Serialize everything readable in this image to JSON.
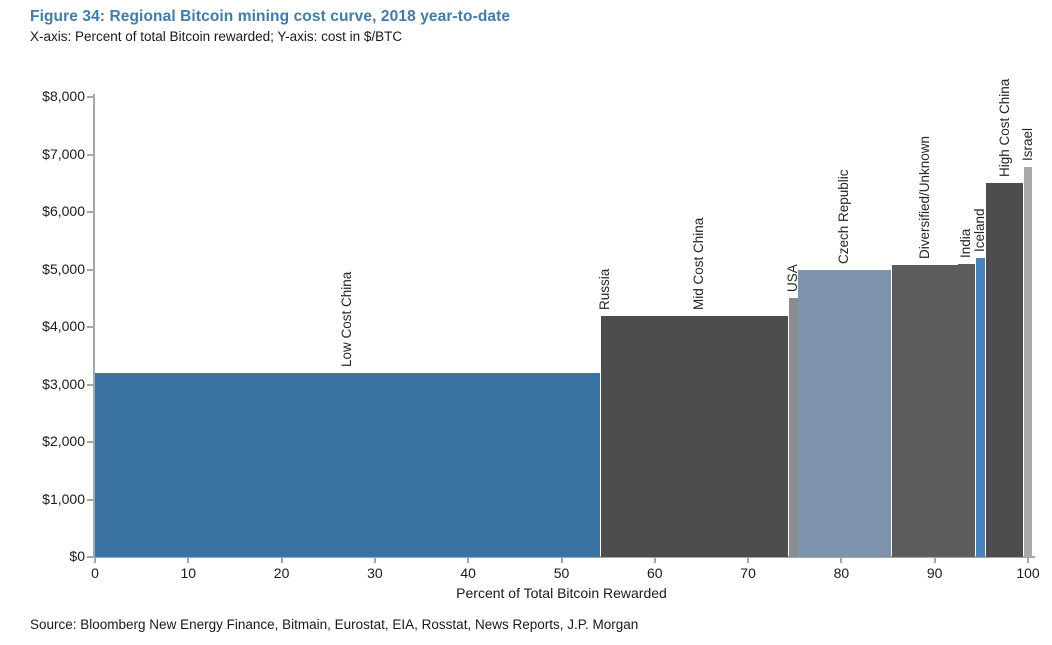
{
  "figure": {
    "title": "Figure 34: Regional Bitcoin mining cost curve, 2018 year-to-date",
    "subtitle": "X-axis: Percent of total Bitcoin rewarded; Y-axis: cost in $/BTC",
    "source": "Source: Bloomberg New Energy Finance, Bitmain, Eurostat, EIA, Rosstat, News Reports, J.P. Morgan"
  },
  "colors": {
    "title_accent": "#3f7cae",
    "axis": "#a6a6a6",
    "text": "#1a1a1a"
  },
  "chart_data": {
    "type": "bar",
    "variant": "variable-width-cost-curve",
    "title": "Figure 34: Regional Bitcoin mining cost curve, 2018 year-to-date",
    "subtitle": "X-axis: Percent of total Bitcoin rewarded; Y-axis: cost in $/BTC",
    "xlabel": "Percent of Total Bitcoin Rewarded",
    "ylabel": "cost in $/BTC",
    "xlim": [
      0,
      100
    ],
    "ylim": [
      0,
      8000
    ],
    "grid": false,
    "legend": false,
    "x_ticks": [
      0,
      10,
      20,
      30,
      40,
      50,
      60,
      70,
      80,
      90,
      100
    ],
    "y_ticks": [
      {
        "value": 0,
        "label": "$0"
      },
      {
        "value": 1000,
        "label": "$1,000"
      },
      {
        "value": 2000,
        "label": "$2,000"
      },
      {
        "value": 3000,
        "label": "$3,000"
      },
      {
        "value": 4000,
        "label": "$4,000"
      },
      {
        "value": 5000,
        "label": "$5,000"
      },
      {
        "value": 6000,
        "label": "$6,000"
      },
      {
        "value": 7000,
        "label": "$7,000"
      },
      {
        "value": 8000,
        "label": "$8,000"
      }
    ],
    "segments": [
      {
        "label": "Low Cost China",
        "x_start": 0,
        "x_end": 54.1,
        "value": 3200,
        "color": "#3a72a3"
      },
      {
        "label": "Russia",
        "x_start": 54.2,
        "x_end": 55.2,
        "value": 4200,
        "color": "#4d4d4f"
      },
      {
        "label": "Mid Cost China",
        "x_start": 55.2,
        "x_end": 74.3,
        "value": 4200,
        "color": "#4d4d4f"
      },
      {
        "label": "USA",
        "x_start": 74.4,
        "x_end": 75.3,
        "value": 4500,
        "color": "#8a8c8f"
      },
      {
        "label": "Czech Republic",
        "x_start": 75.3,
        "x_end": 85.3,
        "value": 5000,
        "color": "#7e93ae"
      },
      {
        "label": "Diversified/Unknown",
        "x_start": 85.4,
        "x_end": 92.5,
        "value": 5080,
        "color": "#5a5c5e"
      },
      {
        "label": "India",
        "x_start": 92.5,
        "x_end": 94.3,
        "value": 5100,
        "color": "#5a5c5e"
      },
      {
        "label": "Iceland",
        "x_start": 94.4,
        "x_end": 95.4,
        "value": 5200,
        "color": "#4583c1"
      },
      {
        "label": "High Cost China",
        "x_start": 95.5,
        "x_end": 99.5,
        "value": 6500,
        "color": "#4d4d4f"
      },
      {
        "label": "Israel",
        "x_start": 99.6,
        "x_end": 100.4,
        "value": 6780,
        "color": "#a7a8ab"
      }
    ],
    "source": "Source: Bloomberg New Energy Finance, Bitmain, Eurostat, EIA, Rosstat, News Reports, J.P. Morgan"
  }
}
